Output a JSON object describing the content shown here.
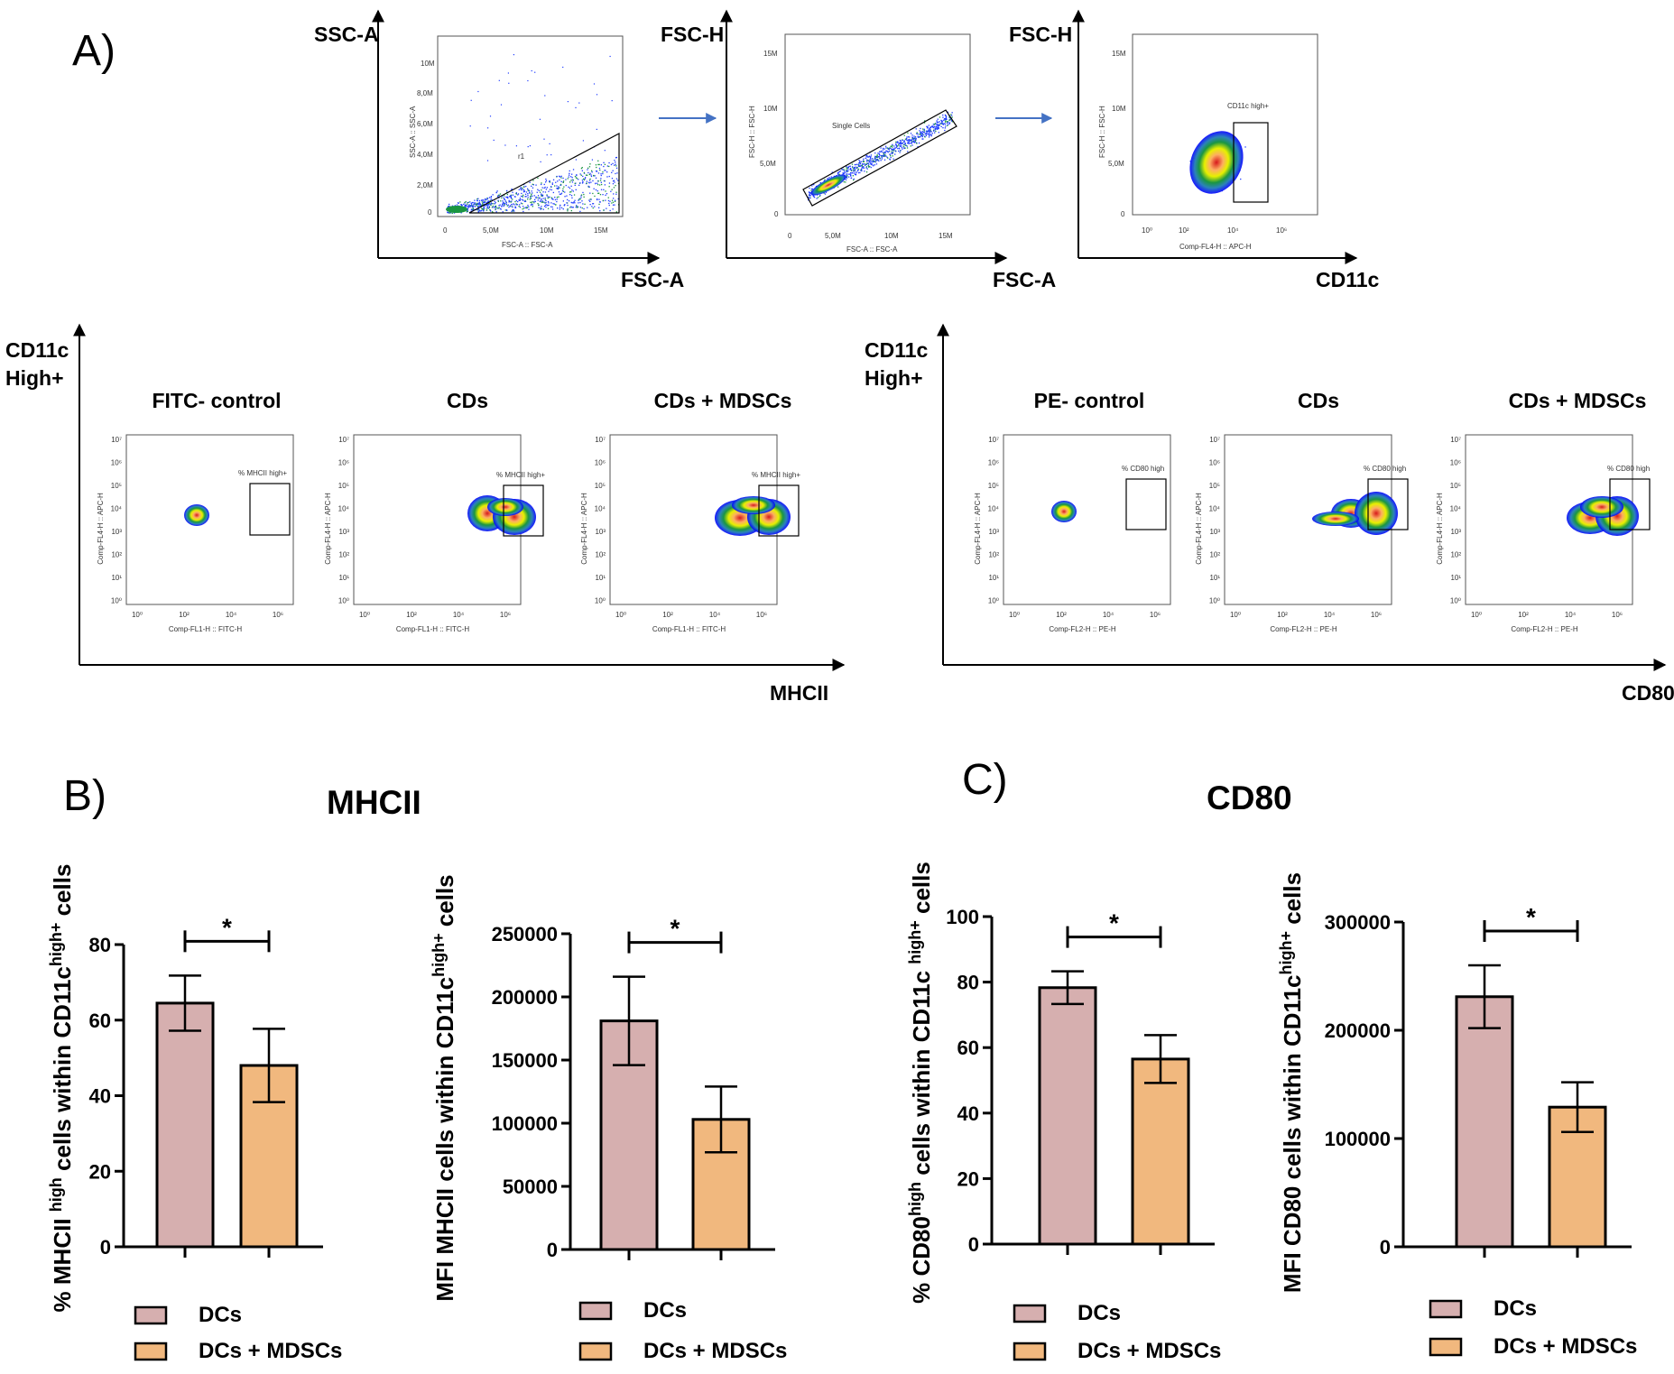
{
  "panels": {
    "a": "A)",
    "b": "B)",
    "c": "C)"
  },
  "colors": {
    "dcs": "#d6afaf",
    "dcs_mdscs": "#f1b87e",
    "gate_arrow": "#4472c4"
  },
  "gating": {
    "plot1": {
      "y_title": "SSC-A",
      "x_title": "FSC-A",
      "inner_y": "SSC-A :: SSC-A",
      "inner_x": "FSC-A :: FSC-A",
      "y_ticks": [
        "10M",
        "8,0M",
        "6,0M",
        "4,0M",
        "2,0M",
        "0"
      ],
      "x_ticks": [
        "0",
        "5,0M",
        "10M",
        "15M"
      ],
      "gate": "r1"
    },
    "plot2": {
      "y_title": "FSC-H",
      "x_title": "FSC-A",
      "inner_y": "FSC-H :: FSC-H",
      "inner_x": "FSC-A :: FSC-A",
      "y_ticks": [
        "15M",
        "10M",
        "5,0M",
        "0"
      ],
      "x_ticks": [
        "0",
        "5,0M",
        "10M",
        "15M"
      ],
      "gate": "Single Cells"
    },
    "plot3": {
      "y_title": "FSC-H",
      "x_title": "CD11c",
      "inner_y": "FSC-H :: FSC-H",
      "inner_x": "Comp-FL4-H :: APC-H",
      "y_ticks": [
        "15M",
        "10M",
        "5,0M",
        "0"
      ],
      "x_ticks": [
        "10⁰",
        "10²",
        "10⁴",
        "10⁶"
      ],
      "gate": "CD11c high+"
    }
  },
  "mhcii_group": {
    "y_title_1": "CD11c",
    "y_title_2": "High+",
    "x_title": "MHCII",
    "plots": [
      {
        "title": "FITC- control",
        "gate": "% MHCII high+",
        "inner_x": "Comp-FL1-H :: FITC-H",
        "inner_y": "Comp-FL4-H :: APC-H"
      },
      {
        "title": "CDs",
        "gate": "% MHCII high+",
        "inner_x": "Comp-FL1-H :: FITC-H",
        "inner_y": "Comp-FL4-H :: APC-H"
      },
      {
        "title": "CDs + MDSCs",
        "gate": "% MHCII high+",
        "inner_x": "Comp-FL1-H :: FITC-H",
        "inner_y": "Comp-FL4-H :: APC-H"
      }
    ]
  },
  "cd80_group": {
    "y_title_1": "CD11c",
    "y_title_2": "High+",
    "x_title": "CD80",
    "plots": [
      {
        "title": "PE- control",
        "gate": "% CD80 high",
        "inner_x": "Comp-FL2-H :: PE-H",
        "inner_y": "Comp-FL4-H :: APC-H"
      },
      {
        "title": "CDs",
        "gate": "% CD80 high",
        "inner_x": "Comp-FL2-H :: PE-H",
        "inner_y": "Comp-FL4-H :: APC-H"
      },
      {
        "title": "CDs + MDSCs",
        "gate": "% CD80 high",
        "inner_x": "Comp-FL2-H :: PE-H",
        "inner_y": "Comp-FL4-H :: APC-H"
      }
    ]
  },
  "log_ticks": {
    "y": [
      "10⁷",
      "10⁶",
      "10⁵",
      "10⁴",
      "10³",
      "10²",
      "10¹",
      "10⁰"
    ],
    "x": [
      "10⁰",
      "10²",
      "10⁴",
      "10⁶"
    ]
  },
  "section_titles": {
    "mhcii": "MHCII",
    "cd80": "CD80"
  },
  "legend": {
    "dcs": "DCs",
    "dcs_mdscs": "DCs + MDSCs"
  },
  "chart_data": [
    {
      "type": "bar",
      "id": "b1",
      "categories": [
        "DCs",
        "DCs + MDSCs"
      ],
      "values": [
        64.5,
        48
      ],
      "errors": [
        7.3,
        9.7
      ],
      "ylim": [
        0,
        80
      ],
      "yticks": [
        "0",
        "20",
        "40",
        "60",
        "80"
      ],
      "ylabel_parts": [
        "% MHCII ",
        "high",
        " cells within CD11c",
        "high+",
        " cells"
      ],
      "significance": "*"
    },
    {
      "type": "bar",
      "id": "b2",
      "categories": [
        "DCs",
        "DCs + MDSCs"
      ],
      "values": [
        181000,
        103000
      ],
      "errors": [
        35000,
        26000
      ],
      "ylim": [
        0,
        250000
      ],
      "yticks": [
        "0",
        "50000",
        "100000",
        "150000",
        "200000",
        "250000"
      ],
      "ylabel_parts": [
        "MFI MHCII cells within CD11c",
        "high+",
        " cells"
      ],
      "significance": "*"
    },
    {
      "type": "bar",
      "id": "c1",
      "categories": [
        "DCs",
        "DCs + MDSCs"
      ],
      "values": [
        78.3,
        56.5
      ],
      "errors": [
        5,
        7.3
      ],
      "ylim": [
        0,
        100
      ],
      "yticks": [
        "0",
        "20",
        "40",
        "60",
        "80",
        "100"
      ],
      "ylabel_parts": [
        "% CD80",
        "high",
        " cells within CD11c ",
        "high+",
        " cells"
      ],
      "significance": "*"
    },
    {
      "type": "bar",
      "id": "c2",
      "categories": [
        "DCs",
        "DCs + MDSCs"
      ],
      "values": [
        231000,
        129000
      ],
      "errors": [
        29000,
        23000
      ],
      "ylim": [
        0,
        300000
      ],
      "yticks": [
        "0",
        "100000",
        "200000",
        "300000"
      ],
      "ylabel_parts": [
        "MFI CD80 cells within CD11c",
        "high+",
        " cells"
      ],
      "significance": "*"
    }
  ]
}
